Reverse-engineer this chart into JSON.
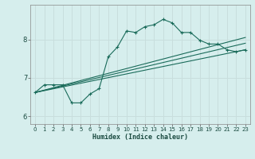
{
  "xlabel": "Humidex (Indice chaleur)",
  "bg_color": "#d6eeed",
  "grid_color": "#c8dedd",
  "line_color": "#1a6b5a",
  "xlim": [
    -0.5,
    23.5
  ],
  "ylim": [
    5.8,
    8.9
  ],
  "xticks": [
    0,
    1,
    2,
    3,
    4,
    5,
    6,
    7,
    8,
    9,
    10,
    11,
    12,
    13,
    14,
    15,
    16,
    17,
    18,
    19,
    20,
    21,
    22,
    23
  ],
  "yticks": [
    6,
    7,
    8
  ],
  "series1_x": [
    0,
    1,
    2,
    3,
    4,
    5,
    6,
    7,
    8,
    9,
    10,
    11,
    12,
    13,
    14,
    15,
    16,
    17,
    18,
    19,
    20,
    21,
    22,
    23
  ],
  "series1_y": [
    6.62,
    6.82,
    6.82,
    6.82,
    6.35,
    6.35,
    6.58,
    6.72,
    7.55,
    7.8,
    8.22,
    8.18,
    8.33,
    8.38,
    8.52,
    8.43,
    8.18,
    8.18,
    7.98,
    7.88,
    7.88,
    7.73,
    7.68,
    7.73
  ],
  "series2_x": [
    0,
    23
  ],
  "series2_y": [
    6.62,
    7.73
  ],
  "series3_x": [
    0,
    23
  ],
  "series3_y": [
    6.62,
    7.9
  ],
  "series4_x": [
    0,
    23
  ],
  "series4_y": [
    6.62,
    8.05
  ]
}
